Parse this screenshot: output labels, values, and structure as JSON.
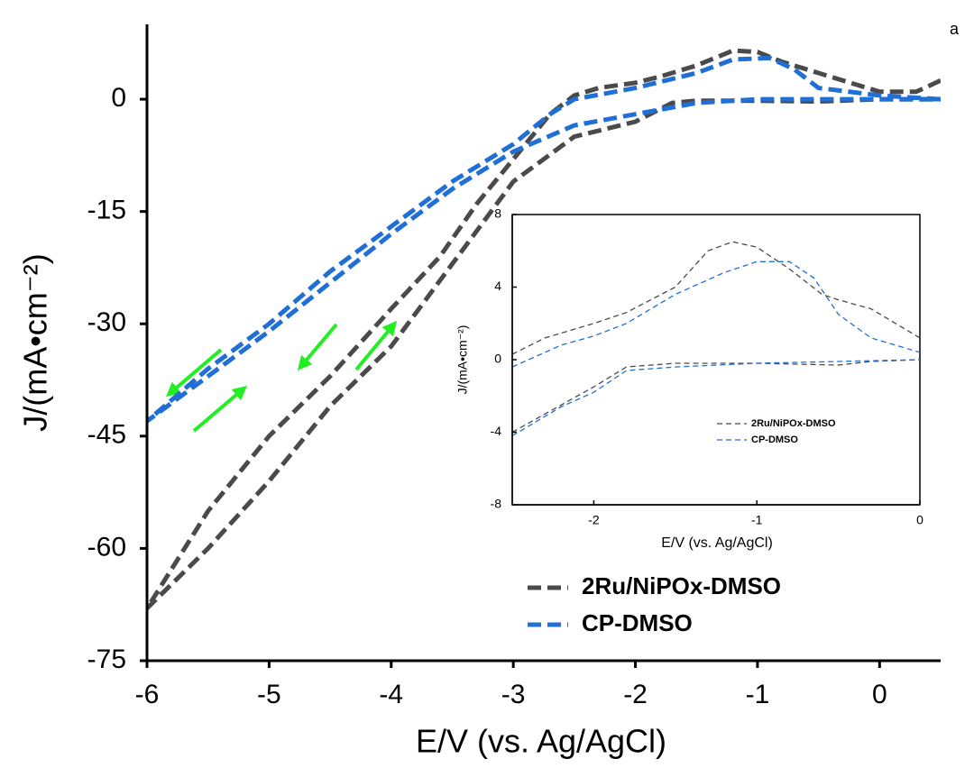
{
  "chart_data": [
    {
      "type": "line",
      "panel_label": "a",
      "x_label": "E/V (vs. Ag/AgCl)",
      "y_label": "J/(mA•cm⁻²)",
      "xlim": [
        -6,
        0.5
      ],
      "xticks": [
        -6,
        -5,
        -4,
        -3,
        -2,
        -1,
        0
      ],
      "ylim": [
        -75,
        10
      ],
      "yticks": [
        -75,
        -60,
        -45,
        -30,
        -15,
        0
      ],
      "series": [
        {
          "name": "2Ru/NiPOx-DMSO",
          "color": "#4a4a4a",
          "x": [
            0.5,
            0.3,
            0,
            -0.5,
            -0.8,
            -1,
            -1.2,
            -1.5,
            -1.8,
            -2,
            -2.3,
            -2.5,
            -2.7,
            -3,
            -3.3,
            -3.6,
            -4,
            -4.5,
            -5,
            -5.5,
            -6,
            -5.5,
            -5,
            -4.5,
            -4,
            -3.5,
            -3,
            -2.5,
            -2,
            -1.7,
            -1.5,
            -1,
            -0.5,
            0,
            0.5
          ],
          "values": [
            2.5,
            1,
            1,
            3.5,
            5,
            6.3,
            6.5,
            4.5,
            3,
            2.2,
            1.5,
            0.5,
            -2,
            -8,
            -14,
            -21,
            -28,
            -37,
            -45,
            -55,
            -68,
            -60,
            -51,
            -41,
            -33,
            -22,
            -11,
            -5,
            -3,
            -0.5,
            -0.2,
            -0.2,
            -0.3,
            0,
            0
          ]
        },
        {
          "name": "CP-DMSO",
          "color": "#1f6fd6",
          "x": [
            0.5,
            0,
            -0.5,
            -0.7,
            -0.9,
            -1.2,
            -1.5,
            -2,
            -2.5,
            -2.7,
            -3,
            -3.5,
            -4,
            -4.5,
            -5,
            -5.5,
            -6,
            -5.5,
            -5,
            -4.5,
            -4,
            -3.5,
            -3,
            -2.5,
            -2,
            -1.5,
            -1,
            0,
            0.5
          ],
          "values": [
            0,
            0.5,
            1.5,
            4,
            5.5,
            5.3,
            3.5,
            1.5,
            0,
            -2,
            -6,
            -11,
            -17,
            -23,
            -30,
            -36,
            -43,
            -37,
            -31,
            -24.5,
            -18,
            -12,
            -7,
            -3.5,
            -2,
            -0.5,
            0,
            0,
            0
          ]
        }
      ]
    },
    {
      "type": "line",
      "x_label": "E/V (vs. Ag/AgCl)",
      "y_label": "J/(mA•cm⁻²)",
      "xlim": [
        -2.5,
        0
      ],
      "xticks": [
        -2,
        -1,
        0
      ],
      "ylim": [
        -8,
        8
      ],
      "yticks": [
        -8,
        -4,
        0,
        4,
        8
      ],
      "series": [
        {
          "name": "2Ru/NiPOx-DMSO",
          "color": "#4a4a4a",
          "x": [
            -2.5,
            -2.3,
            -2,
            -1.8,
            -1.5,
            -1.3,
            -1.15,
            -1,
            -0.8,
            -0.6,
            -0.5,
            -0.3,
            0,
            null,
            -2.5,
            -2.2,
            -2,
            -1.8,
            -1.5,
            -1,
            -0.5,
            -0.3,
            0
          ],
          "values": [
            0.3,
            1.2,
            2,
            2.6,
            4,
            6,
            6.5,
            6.2,
            5,
            3.6,
            3.3,
            2.8,
            1.2,
            null,
            -4,
            -2.5,
            -1.5,
            -0.4,
            -0.2,
            -0.2,
            -0.3,
            -0.1,
            0
          ]
        },
        {
          "name": "CP-DMSO",
          "color": "#1f6fd6",
          "x": [
            -2.5,
            -2.2,
            -2,
            -1.8,
            -1.5,
            -1.2,
            -1,
            -0.8,
            -0.65,
            -0.5,
            -0.3,
            0,
            null,
            -2.5,
            -2.2,
            -2,
            -1.8,
            -1.5,
            -1,
            -0.5,
            0
          ],
          "values": [
            -0.4,
            0.8,
            1.3,
            2,
            3.6,
            4.8,
            5.4,
            5.4,
            4.5,
            2.5,
            1.2,
            0.4,
            null,
            -4.2,
            -2.6,
            -1.8,
            -0.6,
            -0.4,
            -0.2,
            -0.1,
            0
          ]
        }
      ]
    }
  ]
}
